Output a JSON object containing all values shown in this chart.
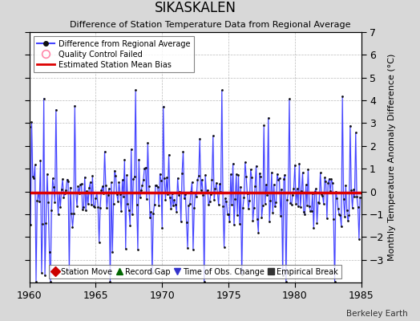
{
  "title": "SIKASKALEN",
  "subtitle": "Difference of Station Temperature Data from Regional Average",
  "ylabel_right": "Monthly Temperature Anomaly Difference (°C)",
  "xmin": 1960,
  "xmax": 1985,
  "ymin": -4,
  "ymax": 7,
  "yticks_left": [
    -3,
    -2,
    -1,
    0,
    1,
    2,
    3,
    4,
    5,
    6,
    7
  ],
  "yticks_right": [
    -3,
    -2,
    -1,
    0,
    1,
    2,
    3,
    4,
    5,
    6,
    7
  ],
  "xticks": [
    1960,
    1965,
    1970,
    1975,
    1980,
    1985
  ],
  "bias_line_y": -0.05,
  "line_color": "#4444ff",
  "line_fill_color": "#aaaaff",
  "dot_color": "#111111",
  "bias_color": "#dd0000",
  "background_color": "#d8d8d8",
  "plot_bg_color": "#ffffff",
  "watermark": "Berkeley Earth",
  "seed": 17,
  "n_points": 300
}
